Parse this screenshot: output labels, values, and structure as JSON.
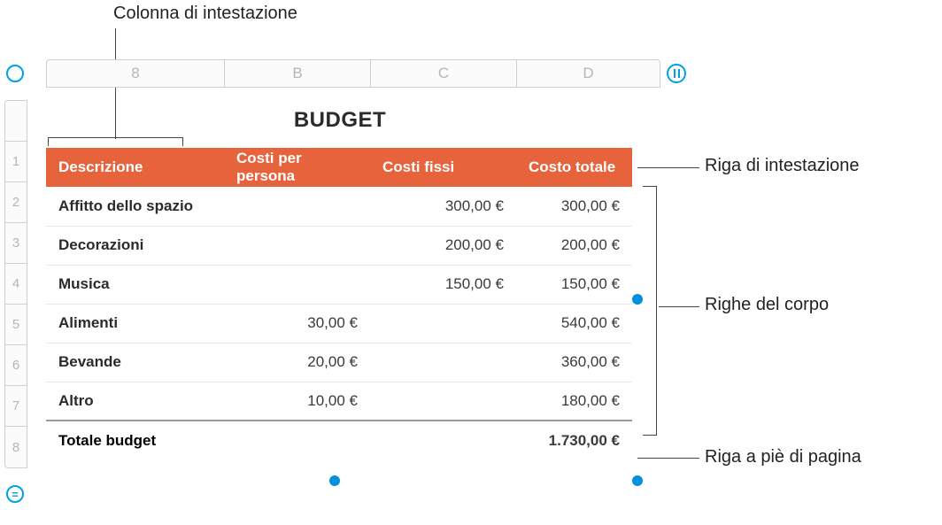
{
  "callouts": {
    "top": "Colonna di intestazione",
    "r1": "Riga di intestazione",
    "r2": "Righe del corpo",
    "r3": "Riga a piè di pagina"
  },
  "columns_ruler": {
    "a": "8",
    "b": "B",
    "c": "C",
    "d": "D"
  },
  "rows_ruler": [
    "1",
    "2",
    "3",
    "4",
    "5",
    "6",
    "7",
    "8"
  ],
  "title": "BUDGET",
  "headers": {
    "c1": "Descrizione",
    "c2": "Costi per persona",
    "c3": "Costi fissi",
    "c4": "Costo totale"
  },
  "rows": [
    {
      "desc": "Affitto dello spazio",
      "per": "",
      "fix": "300,00 €",
      "tot": "300,00 €"
    },
    {
      "desc": "Decorazioni",
      "per": "",
      "fix": "200,00 €",
      "tot": "200,00 €"
    },
    {
      "desc": "Musica",
      "per": "",
      "fix": "150,00 €",
      "tot": "150,00 €"
    },
    {
      "desc": "Alimenti",
      "per": "30,00 €",
      "fix": "",
      "tot": "540,00 €"
    },
    {
      "desc": "Bevande",
      "per": "20,00 €",
      "fix": "",
      "tot": "360,00 €"
    },
    {
      "desc": "Altro",
      "per": "10,00 €",
      "fix": "",
      "tot": "180,00 €"
    }
  ],
  "footer": {
    "label": "Totale budget",
    "total": "1.730,00 €"
  },
  "colors": {
    "header_bg": "#e6633b",
    "header_fg": "#ffffff",
    "accent_blue": "#00a1e4",
    "grid": "#d0d0d0",
    "row_border": "#e9e9e9"
  }
}
